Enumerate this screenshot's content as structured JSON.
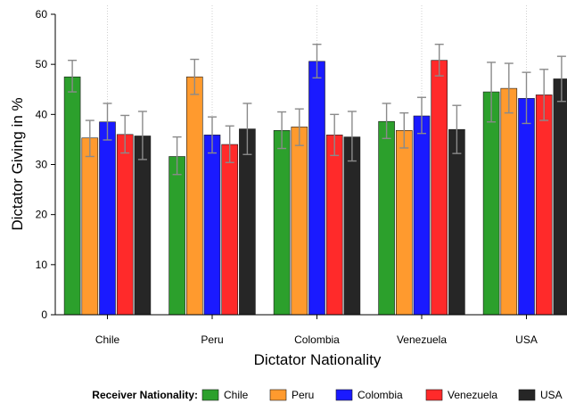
{
  "chart_data": {
    "type": "bar",
    "xlabel": "Dictator Nationality",
    "ylabel": "Dictator Giving in %",
    "ylim": [
      0,
      60
    ],
    "yticks": [
      0,
      10,
      20,
      30,
      40,
      50,
      60
    ],
    "categories": [
      "Chile",
      "Peru",
      "Colombia",
      "Venezuela",
      "USA"
    ],
    "legend_title": "Receiver Nationality:",
    "legend_position": "bottom",
    "grid": "vertical dotted separators",
    "series": [
      {
        "name": "Chile",
        "color": "#2ca02c",
        "values": [
          47.5,
          31.6,
          36.8,
          38.6,
          44.5
        ],
        "err_low": [
          44.5,
          28.0,
          33.2,
          35.2,
          38.5
        ],
        "err_high": [
          50.8,
          35.5,
          40.5,
          42.2,
          50.4
        ]
      },
      {
        "name": "Peru",
        "color": "#ff9a2e",
        "values": [
          35.3,
          47.5,
          37.5,
          36.8,
          45.2
        ],
        "err_low": [
          31.6,
          44.0,
          33.8,
          33.3,
          40.3
        ],
        "err_high": [
          38.8,
          51.0,
          41.1,
          40.3,
          50.2
        ]
      },
      {
        "name": "Colombia",
        "color": "#1a1aff",
        "values": [
          38.5,
          35.9,
          50.6,
          39.7,
          43.2
        ],
        "err_low": [
          34.9,
          32.3,
          47.3,
          36.2,
          38.2
        ],
        "err_high": [
          42.2,
          39.5,
          54.0,
          43.4,
          48.4
        ]
      },
      {
        "name": "Venezuela",
        "color": "#ff2a2a",
        "values": [
          36.0,
          34.0,
          35.9,
          50.8,
          43.9
        ],
        "err_low": [
          32.3,
          30.4,
          31.8,
          47.7,
          38.8
        ],
        "err_high": [
          39.8,
          37.7,
          40.0,
          54.0,
          49.0
        ]
      },
      {
        "name": "USA",
        "color": "#262626",
        "values": [
          35.7,
          37.1,
          35.5,
          37.0,
          47.1
        ],
        "err_low": [
          31.0,
          32.0,
          30.7,
          32.2,
          42.6
        ],
        "err_high": [
          40.6,
          42.2,
          40.6,
          41.8,
          51.6
        ]
      }
    ]
  }
}
